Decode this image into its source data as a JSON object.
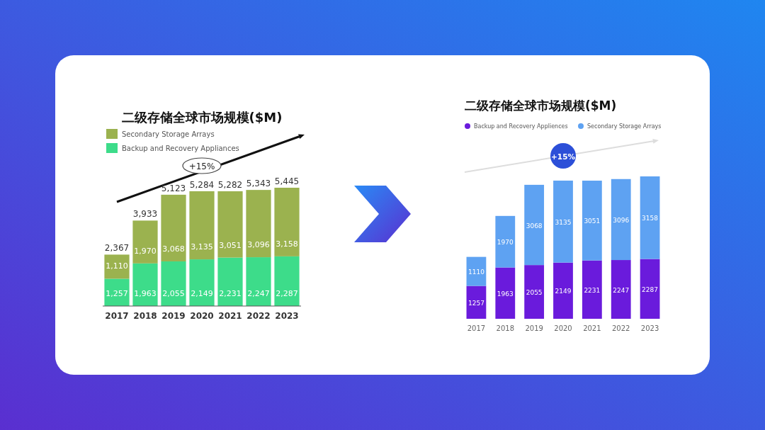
{
  "chart_data": [
    {
      "type": "bar",
      "title": "二级存储全球市场规模($M)",
      "categories": [
        "2017",
        "2018",
        "2019",
        "2020",
        "2021",
        "2022",
        "2023"
      ],
      "stacked": true,
      "legend": "top left",
      "annotations": [
        "+15%"
      ],
      "series": [
        {
          "name": "Backup and Recovery Appliances",
          "color": "#3ddc8a",
          "values": [
            1257,
            1963,
            2055,
            2149,
            2231,
            2247,
            2287
          ],
          "value_labels": [
            "1,257",
            "1,963",
            "2,055",
            "2,149",
            "2,231",
            "2,247",
            "2,287"
          ]
        },
        {
          "name": "Secondary Storage Arrays",
          "color": "#9bb24f",
          "values": [
            1110,
            1970,
            3068,
            3135,
            3051,
            3096,
            3158
          ],
          "value_labels": [
            "1,110",
            "1,970",
            "3,068",
            "3,135",
            "3,051",
            "3,096",
            "3,158"
          ]
        }
      ],
      "totals": [
        "2,367",
        "3,933",
        "5,123",
        "5,284",
        "5,282",
        "5,343",
        "5,445"
      ]
    },
    {
      "type": "bar",
      "title": "二级存储全球市场规模($M)",
      "categories": [
        "2017",
        "2018",
        "2019",
        "2020",
        "2021",
        "2022",
        "2023"
      ],
      "stacked": true,
      "legend": "top",
      "annotations": [
        "+15%"
      ],
      "data_labels": true,
      "series": [
        {
          "name": "Backup and Recovery Appliences",
          "color": "#6a1bdc",
          "values": [
            1257,
            1963,
            2055,
            2149,
            2231,
            2247,
            2287
          ]
        },
        {
          "name": "Secondary Storage Arrays",
          "color": "#5ea2f2",
          "values": [
            1110,
            1970,
            3068,
            3135,
            3051,
            3096,
            3158
          ]
        }
      ]
    }
  ]
}
